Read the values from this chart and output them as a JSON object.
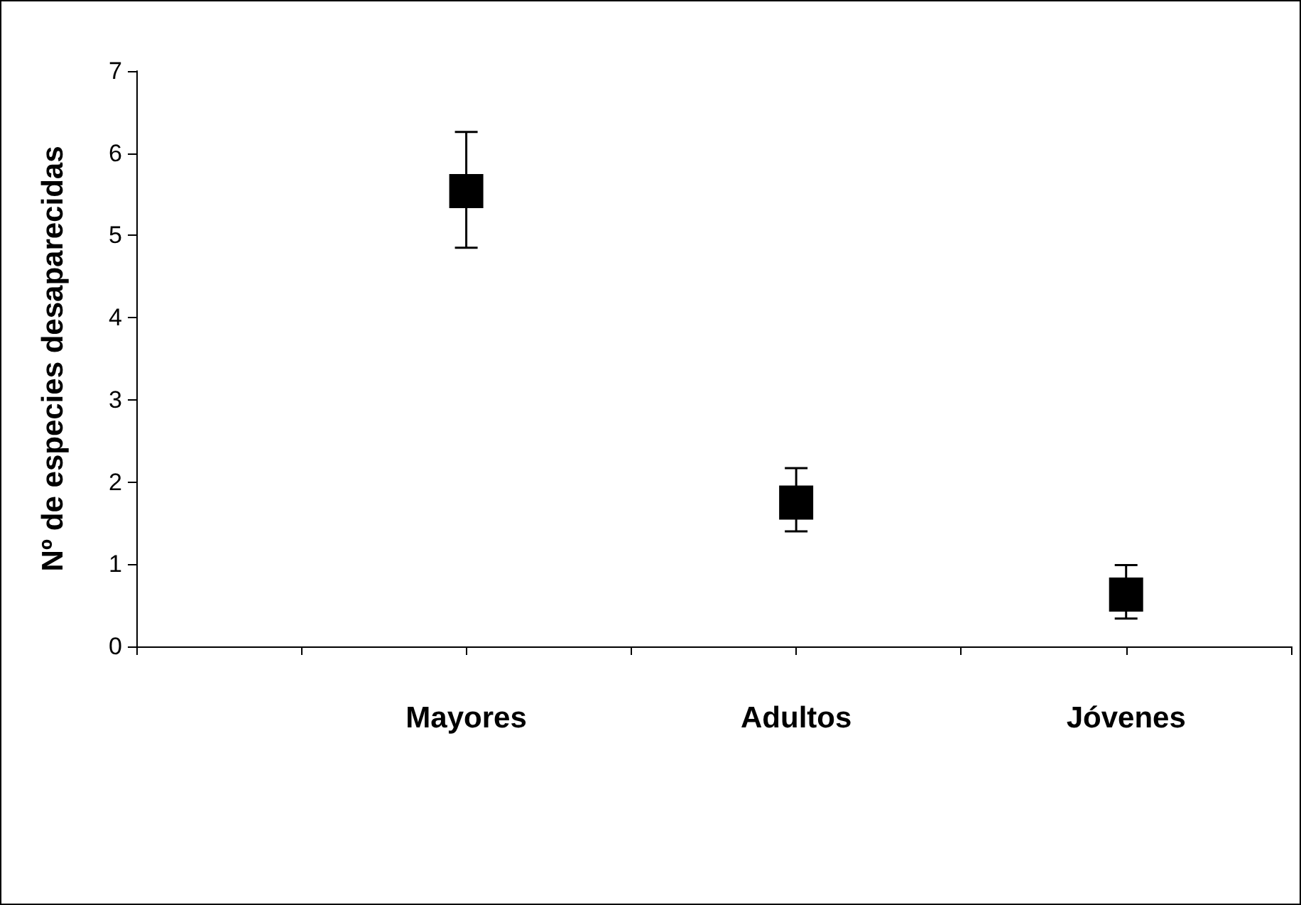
{
  "chart_data": {
    "type": "scatter",
    "ylabel": "Nº de especies desaparecidas",
    "categories": [
      null,
      null,
      "Mayores",
      null,
      "Adultos",
      null,
      "Jóvenes",
      null
    ],
    "values": [
      null,
      null,
      5.54,
      null,
      1.75,
      null,
      0.63,
      null
    ],
    "errors": [
      null,
      null,
      [
        4.85,
        6.26
      ],
      null,
      [
        1.4,
        2.17
      ],
      null,
      [
        0.34,
        0.99
      ],
      null
    ],
    "color": "#000000",
    "marker": "square",
    "ylim": [
      0,
      7
    ],
    "yticks": [
      0,
      1,
      2,
      3,
      4,
      5,
      6,
      7
    ],
    "grid": false
  }
}
